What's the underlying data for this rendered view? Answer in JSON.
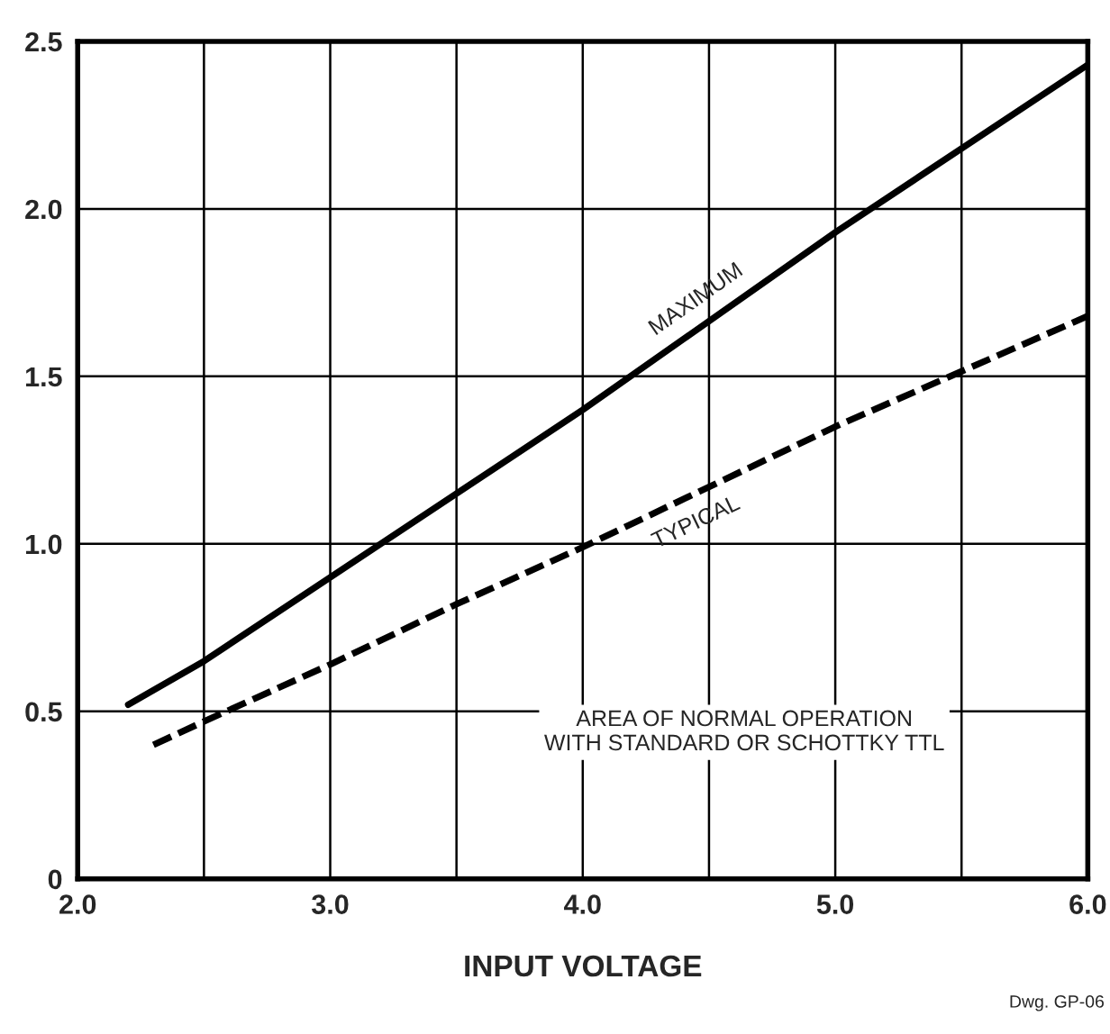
{
  "chart_data": {
    "type": "line",
    "xlabel": "INPUT VOLTAGE",
    "x": [
      2.2,
      2.5,
      3.0,
      3.5,
      4.0,
      5.0,
      6.0
    ],
    "series": [
      {
        "name": "MAXIMUM",
        "color": "#000000",
        "line_style": "solid",
        "values": [
          0.52,
          0.65,
          0.9,
          1.15,
          1.4,
          1.93,
          2.43
        ]
      },
      {
        "name": "TYPICAL",
        "color": "#000000",
        "line_style": "dashed",
        "x": [
          2.3,
          2.5,
          3.0,
          3.5,
          4.0,
          5.0,
          6.0
        ],
        "values": [
          0.4,
          0.47,
          0.64,
          0.82,
          0.99,
          1.35,
          1.68
        ]
      }
    ],
    "xlim": [
      2.0,
      6.0
    ],
    "xticks": [
      {
        "value": 2,
        "label": "2.0"
      },
      {
        "value": 2.5,
        "label": null
      },
      {
        "value": 3,
        "label": "3.0"
      },
      {
        "value": 3.5,
        "label": null
      },
      {
        "value": 4,
        "label": "4.0"
      },
      {
        "value": 4.5,
        "label": null
      },
      {
        "value": 5,
        "label": "5.0"
      },
      {
        "value": 5.5,
        "label": null
      },
      {
        "value": 6,
        "label": "6.0"
      }
    ],
    "ylim": [
      0,
      2.5
    ],
    "yticks": [
      0,
      0.5,
      {
        "value": 1,
        "label": "1.0"
      },
      1.5,
      {
        "value": 2,
        "label": "2.0"
      },
      2.5
    ],
    "grid": true,
    "legend": false,
    "marker": "none",
    "annotations": [
      "AREA OF NORMAL OPERATION\nWITH STANDARD OR SCHOTTKY TTL",
      "Dwg. GP-06"
    ]
  }
}
